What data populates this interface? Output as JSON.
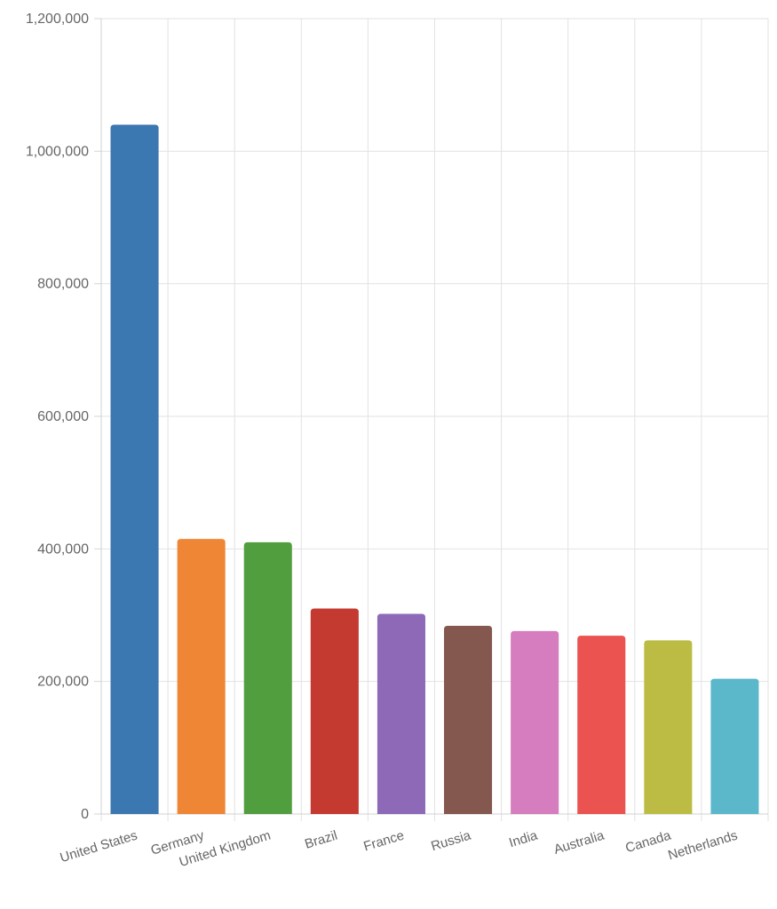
{
  "chart_data": {
    "type": "bar",
    "title": "",
    "xlabel": "",
    "ylabel": "",
    "categories": [
      "United States",
      "Germany",
      "United Kingdom",
      "Brazil",
      "France",
      "Russia",
      "India",
      "Australia",
      "Canada",
      "Netherlands"
    ],
    "values": [
      1040000,
      415000,
      410000,
      310000,
      302000,
      284000,
      276000,
      269000,
      262000,
      204000
    ],
    "colors": [
      "#3b77b0",
      "#ef8636",
      "#519e3e",
      "#c43a31",
      "#8d69b8",
      "#84584e",
      "#d57dbe",
      "#ea5350",
      "#bcbc44",
      "#5bb8cb"
    ],
    "ylim": [
      0,
      1200000
    ],
    "yticks": [
      0,
      200000,
      400000,
      600000,
      800000,
      1000000,
      1200000
    ],
    "ytick_labels": [
      "0",
      "200,000",
      "400,000",
      "600,000",
      "800,000",
      "1,000,000",
      "1,200,000"
    ],
    "grid": true,
    "legend": "none"
  }
}
